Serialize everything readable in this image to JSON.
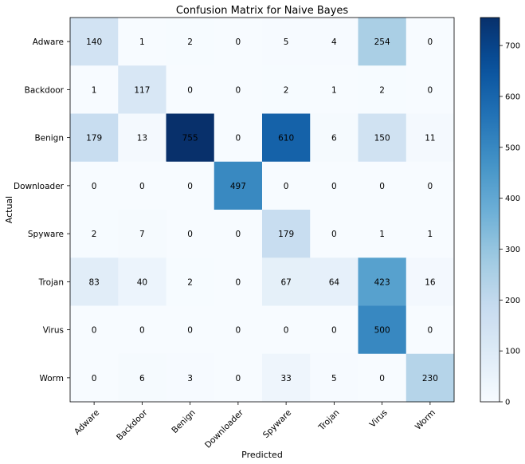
{
  "chart_data": {
    "type": "heatmap",
    "title": "Confusion Matrix for Naive Bayes",
    "xlabel": "Predicted",
    "ylabel": "Actual",
    "row_labels": [
      "Adware",
      "Backdoor",
      "Benign",
      "Downloader",
      "Spyware",
      "Trojan",
      "Virus",
      "Worm"
    ],
    "col_labels": [
      "Adware",
      "Backdoor",
      "Benign",
      "Downloader",
      "Spyware",
      "Trojan",
      "Virus",
      "Worm"
    ],
    "values": [
      [
        140,
        1,
        2,
        0,
        5,
        4,
        254,
        0
      ],
      [
        1,
        117,
        0,
        0,
        2,
        1,
        2,
        0
      ],
      [
        179,
        13,
        755,
        0,
        610,
        6,
        150,
        11
      ],
      [
        0,
        0,
        0,
        497,
        0,
        0,
        0,
        0
      ],
      [
        2,
        7,
        0,
        0,
        179,
        0,
        1,
        1
      ],
      [
        83,
        40,
        2,
        0,
        67,
        64,
        423,
        16
      ],
      [
        0,
        0,
        0,
        0,
        0,
        0,
        500,
        0
      ],
      [
        0,
        6,
        3,
        0,
        33,
        5,
        0,
        230
      ]
    ],
    "colormap": "Blues",
    "colorbar": {
      "range": [
        0,
        755
      ],
      "ticks": [
        0,
        100,
        200,
        300,
        400,
        500,
        600,
        700
      ]
    }
  }
}
